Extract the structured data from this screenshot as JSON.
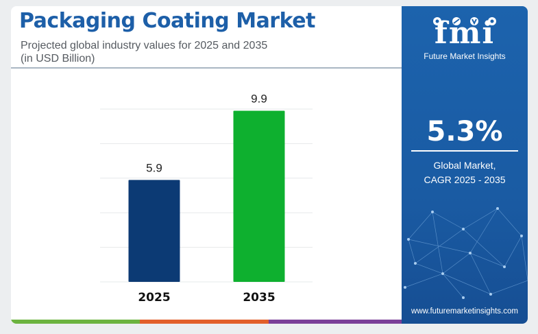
{
  "header": {
    "title": "Packaging Coating Market",
    "subtitle_line1": "Projected global industry values for 2025 and 2035",
    "subtitle_line2": "(in USD Billion)"
  },
  "chart_data": {
    "type": "bar",
    "title": "Packaging Coating Market",
    "subtitle": "Projected global industry values for 2025 and 2035 (in USD Billion)",
    "categories": [
      "2025",
      "2035"
    ],
    "values": [
      5.9,
      9.9
    ],
    "bar_colors": [
      "#0c3a74",
      "#0eb02f"
    ],
    "ylim": [
      0,
      10
    ],
    "grid": true,
    "data_labels": true
  },
  "panel": {
    "logo_text": "fmi",
    "logo_sub": "Future Market Insights",
    "cagr_value": "5.3%",
    "cagr_label_line1": "Global Market,",
    "cagr_label_line2": "CAGR 2025 - 2035",
    "website": "www.futuremarketinsights.com"
  },
  "colors": {
    "title": "#1d5fa8",
    "panel": "#1c63ad",
    "accent_green": "#6cb33f",
    "accent_orange": "#e25f2a",
    "accent_purple": "#7b3f98"
  }
}
